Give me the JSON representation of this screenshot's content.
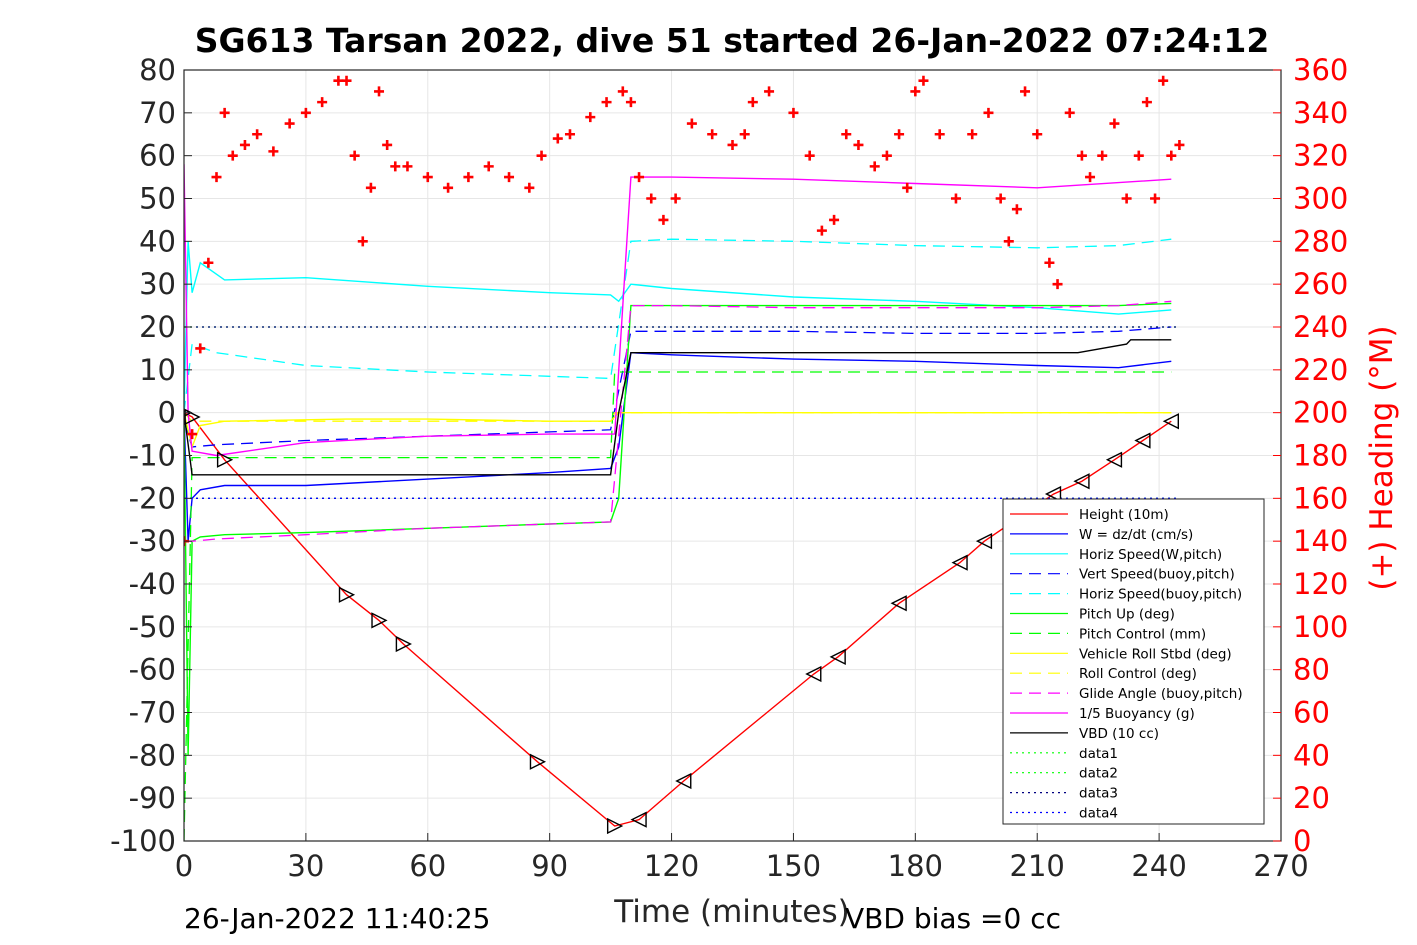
{
  "chart_data": {
    "type": "line",
    "title": "SG613 Tarsan 2022, dive 51 started 26-Jan-2022 07:24:12",
    "xlabel": "Time (minutes)",
    "ylabel": "",
    "y2label": "(+) Heading (°M)",
    "xlim": [
      0,
      270
    ],
    "ylim": [
      -100,
      80
    ],
    "y2lim": [
      0,
      360
    ],
    "xticks": [
      "0",
      "30",
      "60",
      "90",
      "120",
      "150",
      "180",
      "210",
      "240",
      "270"
    ],
    "yticks": [
      "80",
      "70",
      "60",
      "50",
      "40",
      "30",
      "20",
      "10",
      "0",
      "-10",
      "-20",
      "-30",
      "-40",
      "-50",
      "-60",
      "-70",
      "-80",
      "-90",
      "-100"
    ],
    "y2ticks": [
      "360",
      "340",
      "320",
      "300",
      "280",
      "260",
      "240",
      "220",
      "200",
      "180",
      "160",
      "140",
      "120",
      "100",
      "80",
      "60",
      "40",
      "20",
      "0"
    ],
    "grid": true,
    "legend_position": "lower-right",
    "legend": [
      "Height (10m)",
      "W = dz/dt (cm/s)",
      "Horiz Speed(W,pitch)",
      "Vert Speed(buoy,pitch)",
      "Horiz Speed(buoy,pitch)",
      "Pitch Up (deg)",
      "Pitch Control (mm)",
      "Vehicle Roll Stbd (deg)",
      "Roll Control (deg)",
      "Glide Angle (buoy,pitch)",
      "1/5 Buoyancy (g)",
      "VBD (10 cc)",
      "data1",
      "data2",
      "data3",
      "data4"
    ],
    "series": [
      {
        "name": "Height (10m)",
        "color": "#ff0000",
        "style": "solid",
        "x": [
          0,
          2,
          10,
          40,
          48,
          54,
          87,
          106,
          112,
          123,
          155,
          161,
          176,
          191,
          197,
          214,
          221,
          229,
          236,
          243
        ],
        "y": [
          0,
          -1,
          -11,
          -42.5,
          -48.5,
          -54,
          -81.5,
          -96.5,
          -95,
          -86,
          -61,
          -57,
          -44.5,
          -35,
          -30,
          -19,
          -16,
          -11,
          -6.5,
          -2
        ]
      },
      {
        "name": "W = dz/dt (cm/s)",
        "color": "#0000ff",
        "style": "solid",
        "x": [
          0,
          1,
          2,
          4,
          10,
          30,
          60,
          90,
          105,
          107,
          110,
          120,
          150,
          180,
          210,
          230,
          243
        ],
        "y": [
          0,
          -30,
          -20,
          -18,
          -17,
          -17,
          -15.5,
          -14,
          -13,
          -8,
          14,
          13.5,
          12.5,
          12,
          11,
          10.5,
          12
        ]
      },
      {
        "name": "Horiz Speed(W,pitch)",
        "color": "#00ffff",
        "style": "solid",
        "x": [
          0,
          1,
          2,
          4,
          10,
          30,
          60,
          90,
          105,
          107,
          110,
          120,
          150,
          180,
          210,
          230,
          243
        ],
        "y": [
          0,
          40,
          28,
          35,
          31,
          31.5,
          29.5,
          28,
          27.5,
          26,
          30,
          29,
          27,
          26,
          24.5,
          23,
          24
        ]
      },
      {
        "name": "Vert Speed(buoy,pitch)",
        "color": "#0000ff",
        "style": "dashed",
        "x": [
          0,
          2,
          8,
          30,
          60,
          90,
          105,
          110,
          120,
          150,
          180,
          210,
          230,
          243
        ],
        "y": [
          -2,
          -8,
          -7.5,
          -6.5,
          -5.5,
          -4.5,
          -4,
          19,
          19,
          19,
          18.5,
          18.5,
          19,
          20
        ]
      },
      {
        "name": "Horiz Speed(buoy,pitch)",
        "color": "#00ffff",
        "style": "dashed",
        "x": [
          0,
          2,
          8,
          30,
          60,
          90,
          105,
          110,
          120,
          150,
          180,
          210,
          230,
          243
        ],
        "y": [
          0,
          16,
          14,
          11,
          9.5,
          8.5,
          8,
          40,
          40.5,
          40,
          39,
          38.5,
          39,
          40.5
        ]
      },
      {
        "name": "Pitch Up (deg)",
        "color": "#00ff00",
        "style": "solid",
        "x": [
          0,
          1,
          2,
          4,
          10,
          30,
          60,
          90,
          105,
          107,
          110,
          120,
          150,
          180,
          210,
          230,
          243
        ],
        "y": [
          0,
          -80,
          -30,
          -29,
          -28.5,
          -28,
          -27,
          -26,
          -25.5,
          -20,
          25,
          25,
          25,
          25,
          25,
          25,
          25.5
        ]
      },
      {
        "name": "Pitch Control (mm)",
        "color": "#00ff00",
        "style": "dashed",
        "x": [
          0,
          2,
          105,
          106,
          243
        ],
        "y": [
          -100,
          -10.5,
          -10.5,
          9.5,
          9.5
        ]
      },
      {
        "name": "Vehicle Roll Stbd (deg)",
        "color": "#ffff00",
        "style": "solid",
        "x": [
          0,
          2,
          4,
          10,
          40,
          60,
          90,
          105,
          107,
          110,
          120,
          150,
          180,
          210,
          243
        ],
        "y": [
          0,
          -8,
          -3,
          -2,
          -1.5,
          -1.5,
          -2,
          -2,
          0,
          0,
          0,
          0,
          0,
          0,
          0
        ]
      },
      {
        "name": "Roll Control (deg)",
        "color": "#ffff00",
        "style": "dashed",
        "x": [
          0,
          2,
          105,
          106,
          243
        ],
        "y": [
          0,
          -2,
          -2,
          0,
          0
        ]
      },
      {
        "name": "Glide Angle (buoy,pitch)",
        "color": "#ff00ff",
        "style": "dashed",
        "x": [
          0,
          2,
          8,
          30,
          60,
          90,
          105,
          110,
          120,
          150,
          180,
          210,
          230,
          243
        ],
        "y": [
          -30,
          -30,
          -29.5,
          -28.5,
          -27,
          -26,
          -25.5,
          25,
          25,
          24.5,
          24.5,
          24.5,
          25,
          26
        ]
      },
      {
        "name": "1/5 Buoyancy (g)",
        "color": "#ff00ff",
        "style": "solid",
        "x": [
          0,
          1,
          2,
          8,
          30,
          60,
          90,
          106,
          110,
          120,
          150,
          180,
          210,
          243
        ],
        "y": [
          58,
          0,
          -9,
          -10,
          -7,
          -5.5,
          -5,
          -5,
          55,
          55,
          54.5,
          53.5,
          52.5,
          54.5
        ]
      },
      {
        "name": "VBD (10 cc)",
        "color": "#000000",
        "style": "solid",
        "x": [
          0,
          2,
          4,
          105,
          107,
          110,
          220,
          232,
          233,
          243
        ],
        "y": [
          0,
          -14.5,
          -14.5,
          -14.5,
          0,
          14,
          14,
          16,
          17,
          17
        ]
      },
      {
        "name": "data1",
        "color": "#00ff00",
        "style": "dotted",
        "x": [
          0,
          245
        ],
        "y": [
          20,
          20
        ]
      },
      {
        "name": "data2",
        "color": "#00ff00",
        "style": "dotted",
        "x": [
          0,
          245
        ],
        "y": [
          -20,
          -20
        ]
      },
      {
        "name": "data3",
        "color": "#000080",
        "style": "dotted",
        "x": [
          0,
          245
        ],
        "y": [
          20,
          20
        ]
      },
      {
        "name": "data4",
        "color": "#0000ff",
        "style": "dotted",
        "x": [
          0,
          245
        ],
        "y": [
          -20,
          -20
        ]
      },
      {
        "name": "(+) Heading (°M)",
        "axis": "right",
        "color": "#ff0000",
        "style": "plus",
        "x": [
          0,
          2,
          4,
          6,
          8,
          10,
          12,
          15,
          18,
          22,
          26,
          30,
          34,
          38,
          40,
          42,
          44,
          46,
          48,
          50,
          52,
          55,
          60,
          65,
          70,
          75,
          80,
          85,
          88,
          92,
          95,
          100,
          104,
          108,
          110,
          112,
          115,
          118,
          121,
          125,
          130,
          135,
          138,
          140,
          144,
          150,
          154,
          157,
          160,
          163,
          166,
          170,
          173,
          176,
          178,
          180,
          182,
          186,
          190,
          194,
          198,
          201,
          203,
          205,
          207,
          210,
          213,
          215,
          218,
          221,
          223,
          226,
          229,
          232,
          235,
          237,
          239,
          241,
          243,
          245
        ],
        "y": [
          140,
          190,
          230,
          270,
          310,
          340,
          320,
          325,
          330,
          322,
          335,
          340,
          345,
          355,
          355,
          320,
          280,
          305,
          350,
          325,
          315,
          315,
          310,
          305,
          310,
          315,
          310,
          305,
          320,
          328,
          330,
          338,
          345,
          350,
          345,
          310,
          300,
          290,
          300,
          335,
          330,
          325,
          330,
          345,
          350,
          340,
          320,
          285,
          290,
          330,
          325,
          315,
          320,
          330,
          305,
          350,
          355,
          330,
          300,
          330,
          340,
          300,
          280,
          295,
          350,
          330,
          270,
          260,
          340,
          320,
          310,
          320,
          335,
          300,
          320,
          345,
          300,
          355,
          320,
          325
        ]
      }
    ]
  },
  "footer": {
    "timestamp": "26-Jan-2022 11:40:25",
    "vbd_bias": "VBD bias =0 cc"
  }
}
